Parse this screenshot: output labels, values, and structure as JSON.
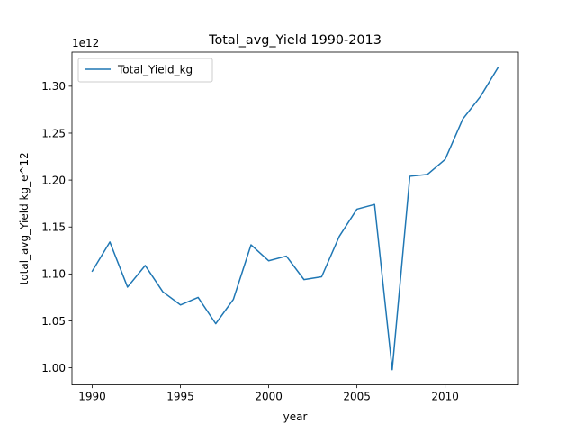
{
  "chart_data": {
    "type": "line",
    "title": "Total_avg_Yield 1990-2013",
    "xlabel": "year",
    "ylabel": "total_avg_Yield kg_e^12",
    "y_offset_text": "1e12",
    "xlim": [
      1988.85,
      2014.15
    ],
    "ylim": [
      0.9818,
      1.3363
    ],
    "x_ticks": [
      1990,
      1995,
      2000,
      2005,
      2010
    ],
    "x_tick_labels": [
      "1990",
      "1995",
      "2000",
      "2005",
      "2010"
    ],
    "y_ticks": [
      1.0,
      1.05,
      1.1,
      1.15,
      1.2,
      1.25,
      1.3
    ],
    "y_tick_labels": [
      "1.00",
      "1.05",
      "1.10",
      "1.15",
      "1.20",
      "1.25",
      "1.30"
    ],
    "grid": false,
    "legend_position": "top-left",
    "series": [
      {
        "name": "Total_Yield_kg",
        "color": "#1f77b4",
        "x": [
          1990,
          1991,
          1992,
          1993,
          1994,
          1995,
          1996,
          1997,
          1998,
          1999,
          2000,
          2001,
          2002,
          2003,
          2004,
          2005,
          2006,
          2007,
          2008,
          2009,
          2010,
          2011,
          2012,
          2013
        ],
        "y": [
          1.103,
          1.134,
          1.086,
          1.109,
          1.081,
          1.067,
          1.075,
          1.047,
          1.073,
          1.131,
          1.114,
          1.119,
          1.094,
          1.097,
          1.14,
          1.169,
          1.174,
          0.998,
          1.204,
          1.206,
          1.222,
          1.265,
          1.289,
          1.32
        ]
      }
    ]
  }
}
